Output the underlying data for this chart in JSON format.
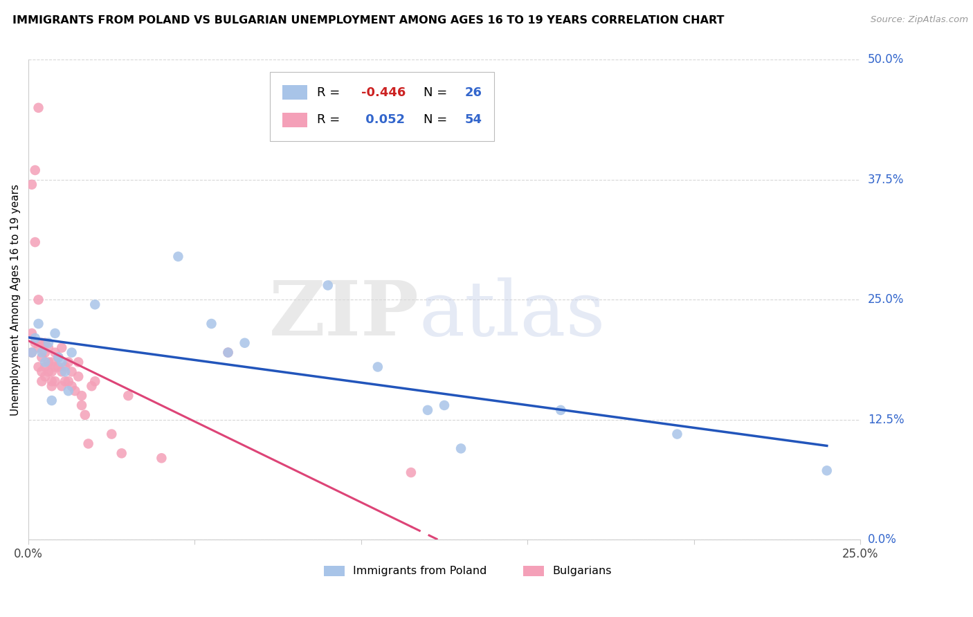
{
  "title": "IMMIGRANTS FROM POLAND VS BULGARIAN UNEMPLOYMENT AMONG AGES 16 TO 19 YEARS CORRELATION CHART",
  "source": "Source: ZipAtlas.com",
  "ylabel": "Unemployment Among Ages 16 to 19 years",
  "ylabel_ticks": [
    "0.0%",
    "12.5%",
    "25.0%",
    "37.5%",
    "50.0%"
  ],
  "xlim": [
    0.0,
    0.25
  ],
  "ylim": [
    0.0,
    0.5
  ],
  "yticks": [
    0.0,
    0.125,
    0.25,
    0.375,
    0.5
  ],
  "xticks": [
    0.0,
    0.05,
    0.1,
    0.15,
    0.2,
    0.25
  ],
  "xtick_labels": [
    "0.0%",
    "",
    "",
    "",
    "",
    "25.0%"
  ],
  "poland_color": "#a8c4e8",
  "bulgarian_color": "#f4a0b8",
  "poland_R": -0.446,
  "poland_N": 26,
  "bulgarian_R": 0.052,
  "bulgarian_N": 54,
  "poland_line_color": "#2255bb",
  "bulgarian_line_color": "#dd4477",
  "poland_x": [
    0.001,
    0.002,
    0.003,
    0.004,
    0.005,
    0.006,
    0.007,
    0.008,
    0.009,
    0.01,
    0.011,
    0.012,
    0.013,
    0.02,
    0.045,
    0.055,
    0.06,
    0.065,
    0.09,
    0.105,
    0.12,
    0.125,
    0.13,
    0.16,
    0.195,
    0.24
  ],
  "poland_y": [
    0.195,
    0.21,
    0.225,
    0.195,
    0.185,
    0.205,
    0.145,
    0.215,
    0.19,
    0.185,
    0.175,
    0.155,
    0.195,
    0.245,
    0.295,
    0.225,
    0.195,
    0.205,
    0.265,
    0.18,
    0.135,
    0.14,
    0.095,
    0.135,
    0.11,
    0.072
  ],
  "bulgarian_x": [
    0.001,
    0.001,
    0.001,
    0.002,
    0.002,
    0.002,
    0.003,
    0.003,
    0.003,
    0.003,
    0.004,
    0.004,
    0.004,
    0.004,
    0.005,
    0.005,
    0.005,
    0.005,
    0.006,
    0.006,
    0.006,
    0.007,
    0.007,
    0.007,
    0.007,
    0.008,
    0.008,
    0.008,
    0.009,
    0.009,
    0.01,
    0.01,
    0.01,
    0.011,
    0.011,
    0.012,
    0.012,
    0.013,
    0.013,
    0.014,
    0.015,
    0.015,
    0.016,
    0.016,
    0.017,
    0.018,
    0.019,
    0.02,
    0.025,
    0.028,
    0.03,
    0.04,
    0.115,
    0.06
  ],
  "bulgarian_y": [
    0.37,
    0.215,
    0.195,
    0.385,
    0.31,
    0.205,
    0.45,
    0.25,
    0.2,
    0.18,
    0.205,
    0.19,
    0.175,
    0.165,
    0.205,
    0.195,
    0.18,
    0.17,
    0.2,
    0.185,
    0.175,
    0.185,
    0.175,
    0.165,
    0.16,
    0.195,
    0.18,
    0.165,
    0.19,
    0.18,
    0.2,
    0.175,
    0.16,
    0.18,
    0.165,
    0.185,
    0.165,
    0.175,
    0.16,
    0.155,
    0.185,
    0.17,
    0.15,
    0.14,
    0.13,
    0.1,
    0.16,
    0.165,
    0.11,
    0.09,
    0.15,
    0.085,
    0.07,
    0.195
  ],
  "poland_line_x_start": 0.0,
  "poland_line_x_end": 0.24,
  "bulgarian_line_x_start": 0.0,
  "bulgarian_line_solid_end": 0.115,
  "bulgarian_line_x_end": 0.25
}
